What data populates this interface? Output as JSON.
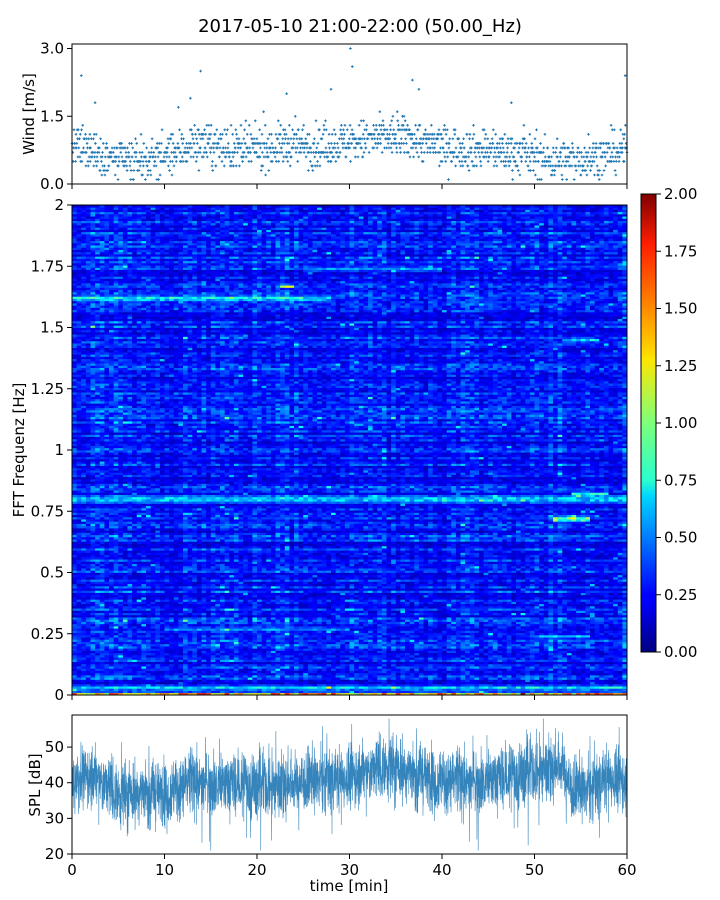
{
  "title": "2017-05-10 21:00-22:00 (50.00_Hz)",
  "chart_data": [
    {
      "type": "scatter",
      "panel": "wind",
      "ylabel": "Wind [m/s]",
      "xlabel": "",
      "xlim": [
        0,
        60
      ],
      "ylim": [
        0,
        3.1
      ],
      "yticks": [
        0.0,
        1.5,
        3.0
      ],
      "ytick_labels": [
        "0.0",
        "1.5",
        "3.0"
      ],
      "xticks": [
        0,
        10,
        20,
        30,
        40,
        50,
        60
      ],
      "color": "#1f77b4",
      "marker": "+",
      "trend_minutes": [
        0,
        2,
        5,
        8,
        11,
        13,
        15,
        18,
        21,
        24,
        27,
        30,
        33,
        36,
        39,
        42,
        45,
        48,
        51,
        54,
        57,
        60
      ],
      "trend_mean_ms": [
        0.8,
        0.8,
        0.5,
        0.55,
        0.65,
        0.9,
        0.85,
        0.75,
        0.8,
        0.9,
        0.8,
        0.95,
        1.0,
        1.05,
        0.85,
        0.8,
        0.75,
        0.7,
        0.55,
        0.55,
        0.6,
        0.8
      ],
      "peaks": [
        {
          "x": 1.0,
          "y": 2.4
        },
        {
          "x": 2.5,
          "y": 1.8
        },
        {
          "x": 11.5,
          "y": 1.7
        },
        {
          "x": 12.8,
          "y": 1.9
        },
        {
          "x": 13.9,
          "y": 2.5
        },
        {
          "x": 23.2,
          "y": 2.0
        },
        {
          "x": 28.0,
          "y": 2.1
        },
        {
          "x": 30.1,
          "y": 3.0
        },
        {
          "x": 30.3,
          "y": 2.6
        },
        {
          "x": 36.8,
          "y": 2.3
        },
        {
          "x": 37.5,
          "y": 2.1
        },
        {
          "x": 47.5,
          "y": 1.8
        },
        {
          "x": 59.8,
          "y": 2.4
        }
      ]
    },
    {
      "type": "heatmap",
      "panel": "spectrogram",
      "ylabel": "FFT Frequenz [Hz]",
      "xlabel": "",
      "xlim": [
        0,
        60
      ],
      "ylim": [
        0,
        2
      ],
      "yticks": [
        0,
        0.25,
        0.5,
        0.75,
        1,
        1.25,
        1.5,
        1.75,
        2
      ],
      "ytick_labels": [
        "0",
        "0.25",
        "0.5",
        "0.75",
        "1",
        "1.25",
        "1.5",
        "1.75",
        "2"
      ],
      "colormap": "jet",
      "clim": [
        0.0,
        2.0
      ],
      "colorbar_ticks": [
        0.0,
        0.25,
        0.5,
        0.75,
        1.0,
        1.25,
        1.5,
        1.75,
        2.0
      ],
      "colorbar_labels": [
        "0.00",
        "0.25",
        "0.50",
        "0.75",
        "1.00",
        "1.25",
        "1.50",
        "1.75",
        "2.00"
      ],
      "background_level": 0.28,
      "bands": [
        {
          "f": 0.005,
          "width": 0.012,
          "level": 1.5,
          "from": 0,
          "to": 60
        },
        {
          "f": 0.03,
          "width": 0.02,
          "level": 0.8,
          "from": 0,
          "to": 60
        },
        {
          "f": 0.8,
          "width": 0.03,
          "level": 0.78,
          "from": 0,
          "to": 60
        },
        {
          "f": 0.72,
          "width": 0.02,
          "level": 1.25,
          "from": 52,
          "to": 56
        },
        {
          "f": 0.82,
          "width": 0.02,
          "level": 0.95,
          "from": 54,
          "to": 58
        },
        {
          "f": 1.62,
          "width": 0.02,
          "level": 0.9,
          "from": 0,
          "to": 28
        },
        {
          "f": 1.67,
          "width": 0.008,
          "level": 1.75,
          "from": 22.5,
          "to": 24
        },
        {
          "f": 1.74,
          "width": 0.02,
          "level": 0.65,
          "from": 25,
          "to": 40
        },
        {
          "f": 1.45,
          "width": 0.02,
          "level": 0.7,
          "from": 53,
          "to": 57
        },
        {
          "f": 0.24,
          "width": 0.015,
          "level": 0.7,
          "from": 50,
          "to": 56
        },
        {
          "f": 0.27,
          "width": 0.02,
          "level": 0.6,
          "from": 10,
          "to": 30
        }
      ]
    },
    {
      "type": "line",
      "panel": "spl",
      "ylabel": "SPL [dB]",
      "xlabel": "time [min]",
      "xlim": [
        0,
        60
      ],
      "ylim": [
        20,
        59
      ],
      "yticks": [
        20,
        30,
        40,
        50
      ],
      "ytick_labels": [
        "20",
        "30",
        "40",
        "50"
      ],
      "xticks": [
        0,
        10,
        20,
        30,
        40,
        50,
        60
      ],
      "xtick_labels": [
        "0",
        "10",
        "20",
        "30",
        "40",
        "50",
        "60"
      ],
      "color": "#1f77b4",
      "trend_minutes": [
        0,
        2,
        5,
        8,
        10,
        13,
        16,
        20,
        24,
        28,
        31,
        34,
        36,
        39,
        42,
        45,
        48,
        51,
        53,
        54,
        56,
        58,
        60
      ],
      "trend_mean_db": [
        41,
        42,
        37,
        38,
        37,
        40,
        40,
        39,
        40,
        41,
        42,
        45,
        44,
        41,
        40,
        41,
        42,
        44,
        45,
        38,
        38,
        42,
        40
      ],
      "spread_db": 4.5
    }
  ]
}
